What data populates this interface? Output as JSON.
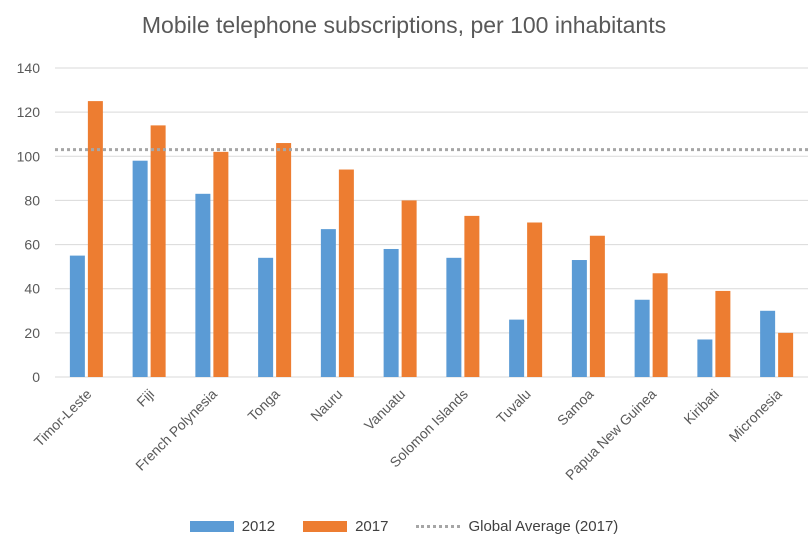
{
  "chart_data": {
    "type": "bar",
    "title": "Mobile telephone subscriptions, per 100 inhabitants",
    "xlabel": "",
    "ylabel": "",
    "categories": [
      "Timor-Leste",
      "Fiji",
      "French Polynesia",
      "Tonga",
      "Nauru",
      "Vanuatu",
      "Solomon Islands",
      "Tuvalu",
      "Samoa",
      "Papua New Guinea",
      "Kiribati",
      "Micronesia"
    ],
    "series": [
      {
        "name": "2012",
        "color": "#5b9bd5",
        "values": [
          55,
          98,
          83,
          54,
          67,
          58,
          54,
          26,
          53,
          35,
          17,
          30
        ]
      },
      {
        "name": "2017",
        "color": "#ed7d31",
        "values": [
          125,
          114,
          102,
          106,
          94,
          80,
          73,
          70,
          64,
          47,
          39,
          20
        ]
      }
    ],
    "reference_line": {
      "name": "Global Average (2017)",
      "value": 103,
      "color": "#a6a6a6",
      "style": "dotted"
    },
    "ylim": [
      0,
      140
    ],
    "yticks": [
      0,
      20,
      40,
      60,
      80,
      100,
      120,
      140
    ],
    "grid": true,
    "legend_position": "bottom"
  }
}
